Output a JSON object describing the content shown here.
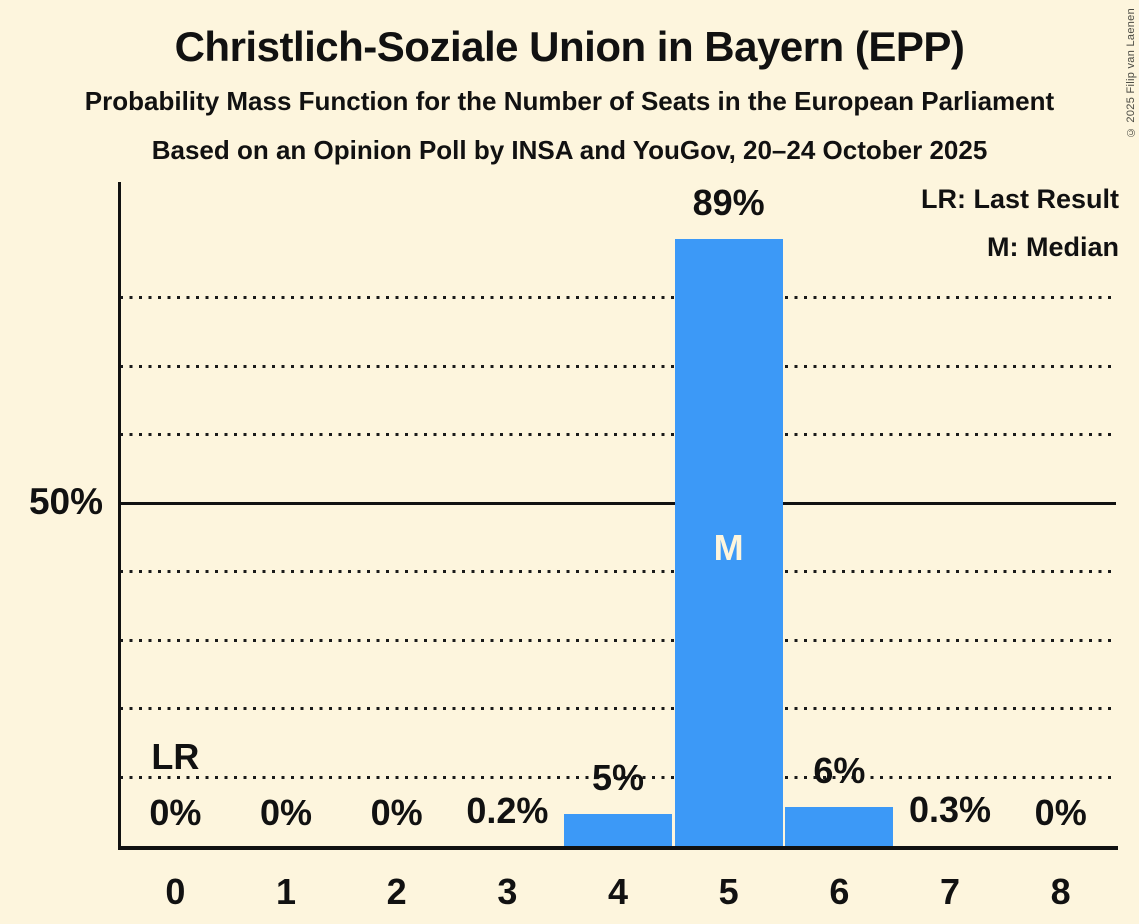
{
  "page": {
    "background_color": "#FDF5DD",
    "copyright": "© 2025 Filip van Laenen"
  },
  "header": {
    "title": "Christlich-Soziale Union in Bayern (EPP)",
    "subtitle1": "Probability Mass Function for the Number of Seats in the European Parliament",
    "subtitle2": "Based on an Opinion Poll by INSA and YouGov, 20–24 October 2025"
  },
  "legend": {
    "items": [
      "LR: Last Result",
      "M: Median"
    ]
  },
  "chart_data": {
    "type": "bar",
    "title": "Christlich-Soziale Union in Bayern (EPP)",
    "categories": [
      "0",
      "1",
      "2",
      "3",
      "4",
      "5",
      "6",
      "7",
      "8"
    ],
    "values": [
      0,
      0,
      0,
      0.2,
      5,
      89,
      6,
      0.3,
      0
    ],
    "bar_labels": [
      "0%",
      "0%",
      "0%",
      "0.2%",
      "5%",
      "89%",
      "6%",
      "0.3%",
      "0%"
    ],
    "xlabel": "",
    "ylabel": "",
    "ylim": [
      0,
      97
    ],
    "bar_color": "#3C99F7",
    "grid": "horizontal dotted every 10%, solid line at 50%",
    "legend_position": "top-right",
    "y_axis": {
      "tick_label": "50%",
      "tick_value": 50,
      "solid_line_at": 50,
      "dotted_gridlines": [
        10,
        20,
        30,
        40,
        60,
        70,
        80
      ]
    },
    "annotations": {
      "last_result": {
        "label": "LR",
        "seat": 0
      },
      "median": {
        "label": "M",
        "seat": 5,
        "text_color": "#FDF5DD"
      }
    }
  }
}
